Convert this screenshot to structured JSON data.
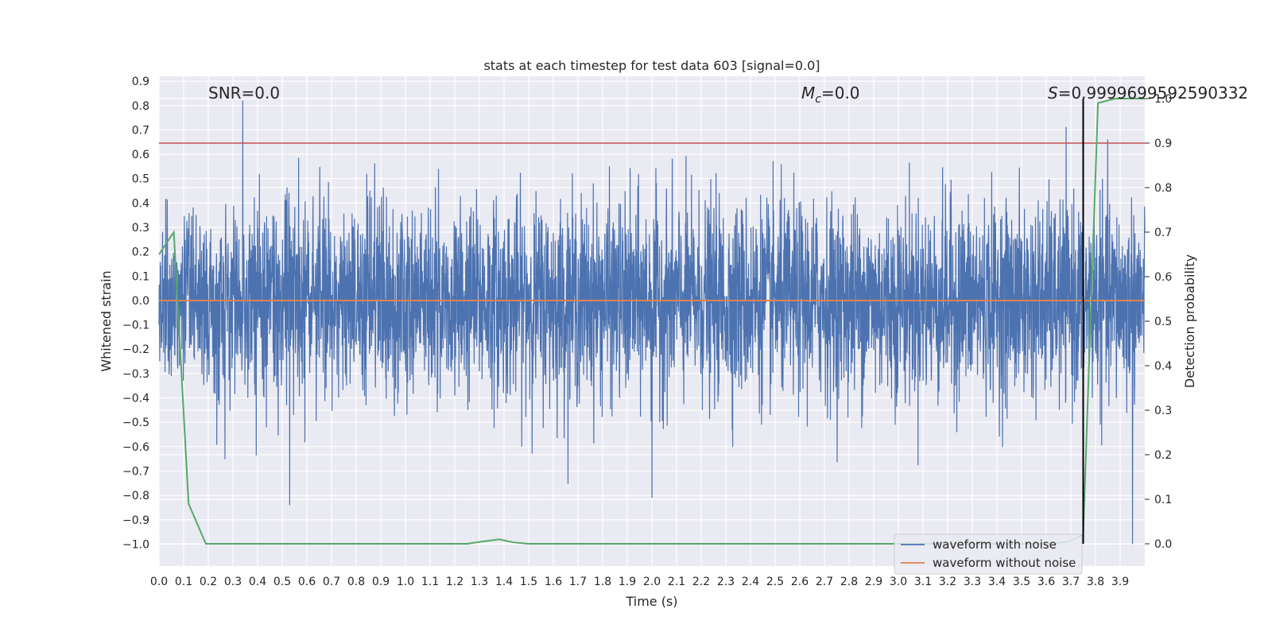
{
  "chart_data": {
    "type": "line",
    "title": "stats at each timestep for test data 603 [signal=0.0]",
    "xlabel": "Time (s)",
    "ylabel": "Whitened strain",
    "y2label": "Detection probability",
    "xlim": [
      0.0,
      4.0
    ],
    "ylim": [
      -1.09,
      0.92
    ],
    "y2lim": [
      -0.05,
      1.05
    ],
    "xticks": [
      0.0,
      0.1,
      0.2,
      0.3,
      0.4,
      0.5,
      0.6,
      0.7,
      0.8,
      0.9,
      1.0,
      1.1,
      1.2,
      1.3,
      1.4,
      1.5,
      1.6,
      1.7,
      1.8,
      1.9,
      2.0,
      2.1,
      2.2,
      2.3,
      2.4,
      2.5,
      2.6,
      2.7,
      2.8,
      2.9,
      3.0,
      3.1,
      3.2,
      3.3,
      3.4,
      3.5,
      3.6,
      3.7,
      3.8,
      3.9
    ],
    "xtick_labels": [
      "0.0",
      "0.1",
      "0.2",
      "0.3",
      "0.4",
      "0.5",
      "0.6",
      "0.7",
      "0.8",
      "0.9",
      "1.0",
      "1.1",
      "1.2",
      "1.3",
      "1.4",
      "1.5",
      "1.6",
      "1.7",
      "1.8",
      "1.9",
      "2.0",
      "2.1",
      "2.2",
      "2.3",
      "2.4",
      "2.5",
      "2.6",
      "2.7",
      "2.8",
      "2.9",
      "3.0",
      "3.1",
      "3.2",
      "3.3",
      "3.4",
      "3.5",
      "3.6",
      "3.7",
      "3.8",
      "3.9"
    ],
    "yticks": [
      0.9,
      0.8,
      0.7,
      0.6,
      0.5,
      0.4,
      0.3,
      0.2,
      0.1,
      0.0,
      -0.1,
      -0.2,
      -0.3,
      -0.4,
      -0.5,
      -0.6,
      -0.7,
      -0.8,
      -0.9,
      -1.0
    ],
    "ytick_labels": [
      "0.9",
      "0.8",
      "0.7",
      "0.6",
      "0.5",
      "0.4",
      "0.3",
      "0.2",
      "0.1",
      "0.0",
      "−0.1",
      "−0.2",
      "−0.3",
      "−0.4",
      "−0.5",
      "−0.6",
      "−0.7",
      "−0.8",
      "−0.9",
      "−1.0"
    ],
    "y2ticks": [
      0.0,
      0.1,
      0.2,
      0.3,
      0.4,
      0.5,
      0.6,
      0.7,
      0.8,
      0.9,
      1.0
    ],
    "y2tick_labels": [
      "0.0",
      "0.1",
      "0.2",
      "0.3",
      "0.4",
      "0.5",
      "0.6",
      "0.7",
      "0.8",
      "0.9",
      "1.0"
    ],
    "annotations": {
      "snr": "SNR=0.0",
      "mc_symbol": "M",
      "mc_sub": "c",
      "mc_value": "=0.0",
      "s_symbol": "S",
      "s_value": "=0.9999699592590332"
    },
    "series": [
      {
        "name": "waveform with noise",
        "color": "#4c72b0",
        "kind": "noise",
        "n_samples": 4096,
        "amplitude_std": 0.2,
        "notable_peaks": [
          [
            0.34,
            0.82
          ],
          [
            0.53,
            -0.84
          ],
          [
            3.95,
            -1.0
          ],
          [
            2.0,
            -0.81
          ]
        ]
      },
      {
        "name": "waveform without noise",
        "color": "#dd8452",
        "x": [
          0.0,
          4.0
        ],
        "y": [
          0.0,
          0.0
        ]
      },
      {
        "name": "detection probability",
        "color": "#55a868",
        "axis": "y2",
        "x": [
          0.0,
          0.06,
          0.12,
          0.19,
          0.25,
          0.31,
          0.38,
          0.5,
          0.63,
          0.75,
          0.88,
          1.0,
          1.13,
          1.25,
          1.31,
          1.38,
          1.44,
          1.5,
          1.63,
          1.75,
          2.0,
          2.25,
          2.5,
          2.75,
          3.0,
          3.25,
          3.5,
          3.63,
          3.69,
          3.75,
          3.81,
          3.88,
          3.94,
          4.0
        ],
        "y": [
          0.65,
          0.7,
          0.09,
          0.0,
          0.0,
          0.0,
          0.0,
          0.0,
          0.0,
          0.0,
          0.0,
          0.0,
          0.0,
          0.0,
          0.005,
          0.01,
          0.003,
          0.0,
          0.0,
          0.0,
          0.0,
          0.0,
          0.0,
          0.0,
          0.0,
          0.0,
          0.0,
          0.0,
          0.005,
          0.02,
          0.99,
          1.0,
          1.0,
          1.0
        ]
      }
    ],
    "threshold": {
      "value": 0.9,
      "axis": "y2",
      "color": "#c44e52"
    },
    "vline": {
      "x": 3.75,
      "y2_top": 1.0,
      "y2_bottom": 0.0,
      "color": "#000000"
    },
    "legend": {
      "location": "lower right"
    },
    "grid": true
  }
}
